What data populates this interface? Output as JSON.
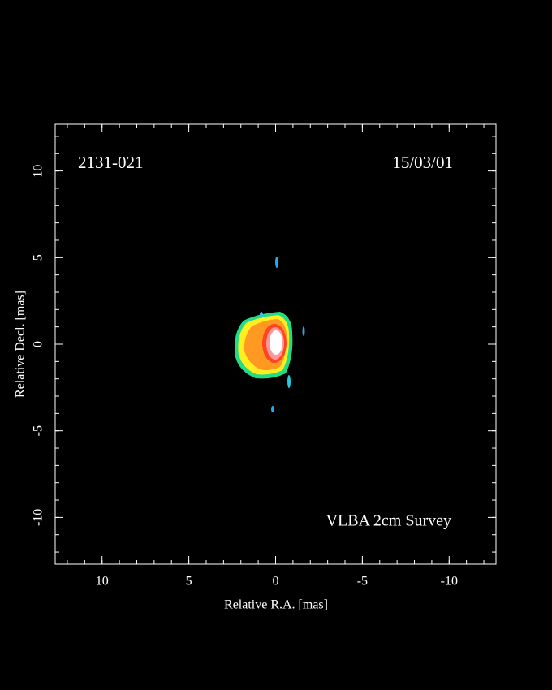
{
  "chart_data": {
    "type": "image",
    "labels": [
      "2131-021",
      "15/03/01",
      "VLBA 2cm Survey"
    ],
    "xlabel": "Relative R.A. [mas]",
    "ylabel": "Relative Decl. [mas]",
    "xlim": [
      12.7,
      -12.7
    ],
    "xticks": [
      10,
      5,
      0,
      -5,
      -10
    ],
    "ylim": [
      -12.7,
      12.7
    ],
    "yticks": [
      -10,
      -5,
      0,
      5,
      10
    ]
  }
}
